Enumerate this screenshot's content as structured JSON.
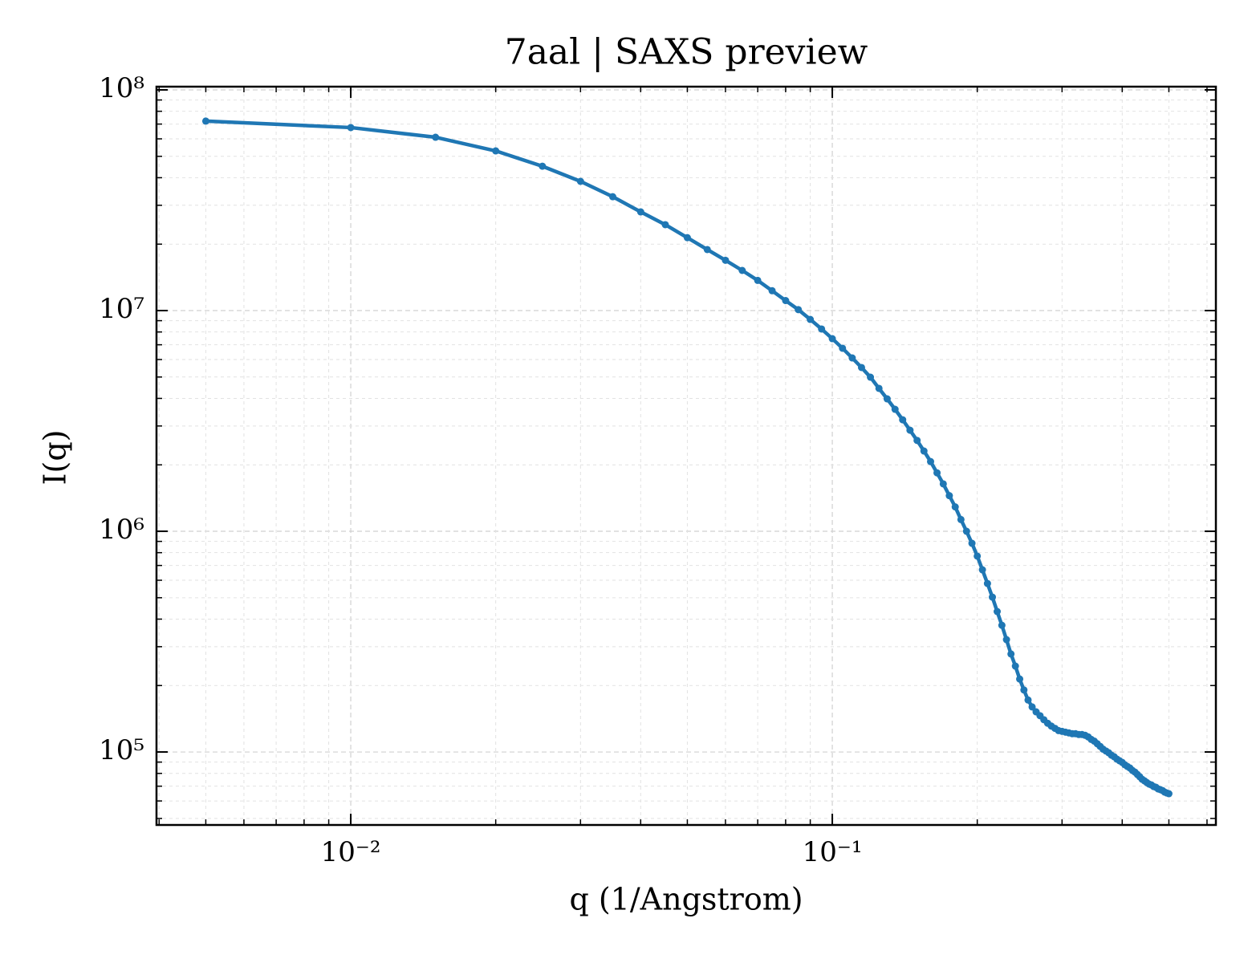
{
  "chart_data": {
    "type": "line",
    "title": "7aal | SAXS preview",
    "x_label": "q (1/Angstrom)",
    "y_label": "I(q)",
    "xscale": "log",
    "yscale": "log",
    "grid": true,
    "minor_grid": true,
    "xlim": [
      0.00395,
      0.626
    ],
    "ylim": [
      46700,
      103400000
    ],
    "xticks": [
      {
        "value": 0.01,
        "label": "10⁻²"
      },
      {
        "value": 0.1,
        "label": "10⁻¹"
      }
    ],
    "yticks": [
      {
        "value": 100000,
        "label": "10⁵"
      },
      {
        "value": 1000000,
        "label": "10⁶"
      },
      {
        "value": 10000000,
        "label": "10⁷"
      },
      {
        "value": 100000000,
        "label": "10⁸"
      }
    ],
    "xminor_ticks": [
      0.004,
      0.005,
      0.006,
      0.007,
      0.008,
      0.009,
      0.02,
      0.03,
      0.04,
      0.05,
      0.06,
      0.07,
      0.08,
      0.09,
      0.2,
      0.3,
      0.4,
      0.5,
      0.6
    ],
    "yminor_ticks": [
      50000,
      60000,
      70000,
      80000,
      90000,
      200000,
      300000,
      400000,
      500000,
      600000,
      700000,
      800000,
      900000,
      2000000,
      3000000,
      4000000,
      5000000,
      6000000,
      7000000,
      8000000,
      9000000,
      20000000,
      30000000,
      40000000,
      50000000,
      60000000,
      70000000,
      80000000,
      90000000
    ],
    "x": [
      0.005,
      0.01,
      0.015,
      0.02,
      0.025,
      0.03,
      0.035,
      0.04,
      0.045,
      0.05,
      0.055,
      0.06,
      0.065,
      0.07,
      0.075,
      0.08,
      0.085,
      0.09,
      0.095,
      0.1,
      0.105,
      0.11,
      0.115,
      0.12,
      0.125,
      0.13,
      0.135,
      0.14,
      0.145,
      0.15,
      0.155,
      0.16,
      0.165,
      0.17,
      0.175,
      0.18,
      0.185,
      0.19,
      0.195,
      0.2,
      0.205,
      0.21,
      0.215,
      0.22,
      0.225,
      0.23,
      0.235,
      0.24,
      0.245,
      0.25,
      0.255,
      0.26,
      0.265,
      0.27,
      0.275,
      0.28,
      0.285,
      0.29,
      0.295,
      0.3,
      0.305,
      0.31,
      0.315,
      0.32,
      0.325,
      0.33,
      0.335,
      0.34,
      0.345,
      0.35,
      0.355,
      0.36,
      0.365,
      0.37,
      0.375,
      0.38,
      0.385,
      0.39,
      0.395,
      0.4,
      0.405,
      0.41,
      0.415,
      0.42,
      0.425,
      0.43,
      0.435,
      0.44,
      0.445,
      0.45,
      0.455,
      0.46,
      0.465,
      0.47,
      0.475,
      0.48,
      0.485,
      0.49,
      0.495,
      0.5
    ],
    "series": [
      {
        "color": "#1f77b4",
        "values": [
          72200000,
          67500000,
          61000000,
          52900000,
          45100000,
          38500000,
          32800000,
          28000000,
          24500000,
          21400000,
          18900000,
          16900000,
          15200000,
          13700000,
          12300000,
          11100000,
          10100000,
          9120000,
          8250000,
          7460000,
          6750000,
          6100000,
          5520000,
          4990000,
          4440000,
          3980000,
          3570000,
          3200000,
          2870000,
          2580000,
          2310000,
          2070000,
          1840000,
          1640000,
          1450000,
          1290000,
          1130000,
          1000000,
          882000,
          772000,
          669000,
          580000,
          503000,
          433000,
          375000,
          323000,
          278000,
          245000,
          214000,
          191000,
          172000,
          160000,
          152000,
          146000,
          140000,
          135000,
          131000,
          128000,
          125000,
          124000,
          123000,
          122000,
          121000,
          121000,
          120000,
          120000,
          119000,
          117000,
          114000,
          112000,
          109000,
          106000,
          103000,
          101000,
          99200,
          96700,
          95100,
          92800,
          91200,
          89700,
          87500,
          86000,
          84600,
          82500,
          81100,
          79100,
          77200,
          75200,
          74000,
          72700,
          71500,
          70900,
          69700,
          69200,
          68000,
          67500,
          66900,
          65800,
          65200,
          64700
        ]
      }
    ]
  }
}
